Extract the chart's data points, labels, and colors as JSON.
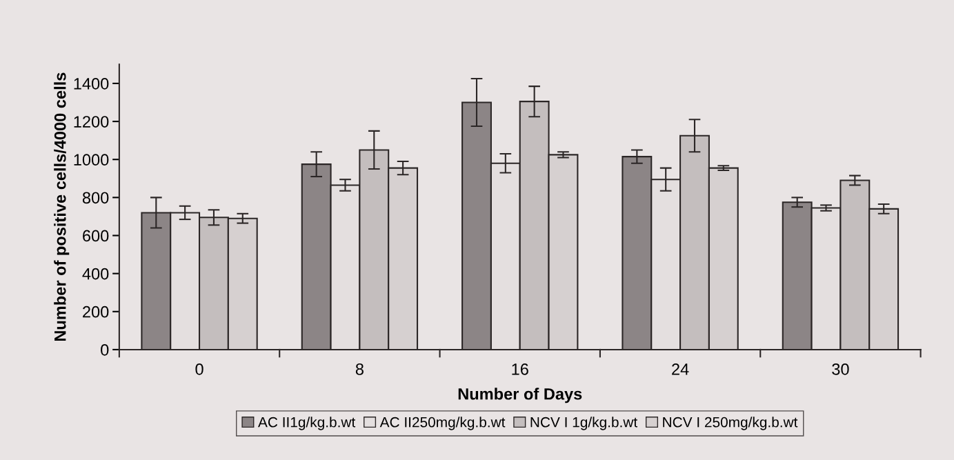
{
  "chart_data": {
    "type": "bar",
    "xlabel": "Number of Days",
    "ylabel": "Number of positive cells/4000 cells",
    "categories": [
      "0",
      "8",
      "16",
      "24",
      "30"
    ],
    "series": [
      {
        "name": "AC II1g/kg.b.wt",
        "color": "#8c8586",
        "values": [
          720,
          975,
          1300,
          1015,
          775
        ],
        "errors": [
          80,
          65,
          125,
          35,
          25
        ]
      },
      {
        "name": "AC II250mg/kg.b.wt",
        "color": "#e4dfdf",
        "values": [
          720,
          865,
          980,
          895,
          745
        ],
        "errors": [
          35,
          30,
          50,
          60,
          15
        ]
      },
      {
        "name": "NCV I 1g/kg.b.wt",
        "color": "#c4bebe",
        "values": [
          695,
          1050,
          1305,
          1125,
          890
        ],
        "errors": [
          40,
          100,
          80,
          85,
          25
        ]
      },
      {
        "name": "NCV I 250mg/kg.b.wt",
        "color": "#d6d0d0",
        "values": [
          690,
          955,
          1025,
          955,
          740
        ],
        "errors": [
          25,
          35,
          15,
          12,
          25
        ]
      }
    ],
    "ylim": [
      0,
      1500
    ],
    "yticks": [
      0,
      200,
      400,
      600,
      800,
      1000,
      1200,
      1400
    ],
    "grid": false,
    "legend": "bottom"
  }
}
